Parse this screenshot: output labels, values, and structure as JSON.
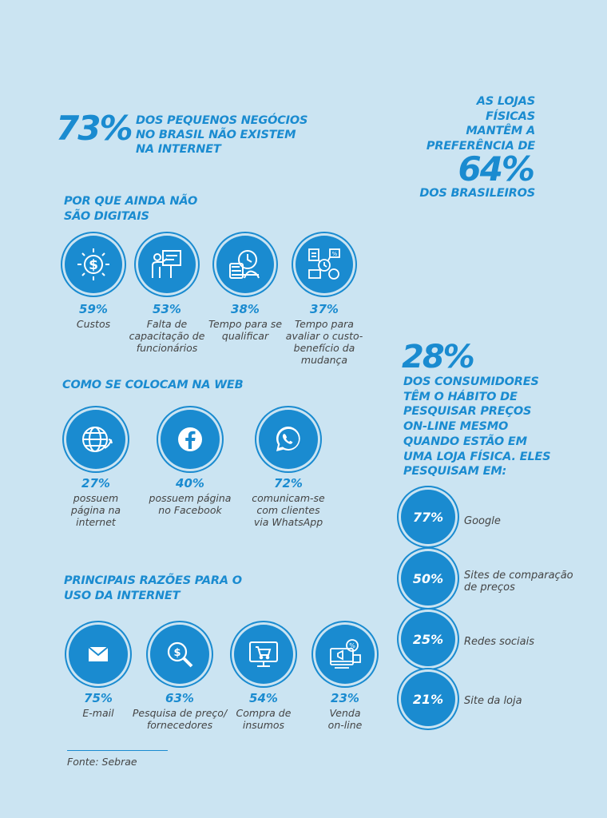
{
  "headline": {
    "percent": "73%",
    "text_lines": [
      "DOS PEQUENOS NEGÓCIOS",
      "NO BRASIL NÃO EXISTEM",
      "NA INTERNET"
    ]
  },
  "stores": {
    "lines_top": [
      "AS LOJAS",
      "FÍSICAS",
      "MANTÊM A",
      "PREFERÊNCIA DE"
    ],
    "percent": "64%",
    "line_bottom": "DOS BRASILEIROS"
  },
  "why_not_digital": {
    "title_lines": [
      "POR QUE AINDA NÃO",
      "SÃO DIGITAIS"
    ],
    "items": [
      {
        "icon": "dollar-icon",
        "percent": "59%",
        "label_lines": [
          "Custos"
        ]
      },
      {
        "icon": "presentation-icon",
        "percent": "53%",
        "label_lines": [
          "Falta de",
          "capacitação de",
          "funcionários"
        ]
      },
      {
        "icon": "study-clock-icon",
        "percent": "38%",
        "label_lines": [
          "Tempo para se",
          "qualificar"
        ]
      },
      {
        "icon": "cost-benefit-icon",
        "percent": "37%",
        "label_lines": [
          "Tempo para",
          "avaliar o custo-",
          "benefício da",
          "mudança"
        ]
      }
    ]
  },
  "web_presence": {
    "title": "COMO SE COLOCAM NA WEB",
    "items": [
      {
        "icon": "globe-icon",
        "percent": "27%",
        "label_lines": [
          "possuem",
          "página na",
          "internet"
        ]
      },
      {
        "icon": "facebook-icon",
        "percent": "40%",
        "label_lines": [
          "possuem página",
          "no Facebook"
        ]
      },
      {
        "icon": "whatsapp-icon",
        "percent": "72%",
        "label_lines": [
          "comunicam-se",
          "com clientes",
          "via WhatsApp"
        ]
      }
    ]
  },
  "internet_reasons": {
    "title_lines": [
      "PRINCIPAIS RAZÕES PARA O",
      "USO DA INTERNET"
    ],
    "items": [
      {
        "icon": "email-icon",
        "percent": "75%",
        "label_lines": [
          "E-mail"
        ]
      },
      {
        "icon": "price-search-icon",
        "percent": "63%",
        "label_lines": [
          "Pesquisa de preço/",
          "fornecedores"
        ]
      },
      {
        "icon": "shopping-cart-monitor-icon",
        "percent": "54%",
        "label_lines": [
          "Compra de",
          "insumos"
        ]
      },
      {
        "icon": "online-sale-icon",
        "percent": "23%",
        "label_lines": [
          "Venda",
          "on-line"
        ]
      }
    ]
  },
  "consumers": {
    "percent": "28%",
    "text_lines": [
      "DOS CONSUMIDORES",
      "TÊM O HÁBITO DE",
      "PESQUISAR PREÇOS",
      "ON-LINE MESMO",
      "QUANDO ESTÃO EM",
      "UMA LOJA FÍSICA. ELES",
      "PESQUISAM EM:"
    ],
    "sources": [
      {
        "percent": "77%",
        "label_lines": [
          "Google"
        ]
      },
      {
        "percent": "50%",
        "label_lines": [
          "Sites de comparação",
          "de preços"
        ]
      },
      {
        "percent": "25%",
        "label_lines": [
          "Redes sociais"
        ]
      },
      {
        "percent": "21%",
        "label_lines": [
          "Site da loja"
        ]
      }
    ]
  },
  "source_note": "Fonte: Sebrae",
  "colors": {
    "background": "#cbe4f2",
    "accent": "#1a8bd0",
    "text": "#444444",
    "icon": "#ffffff"
  }
}
